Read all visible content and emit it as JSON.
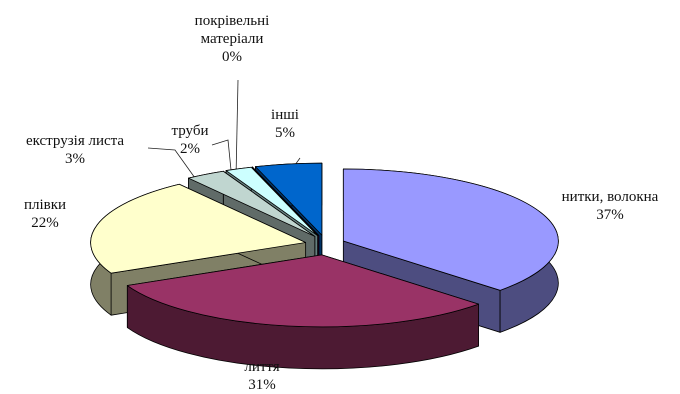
{
  "chart_data": {
    "type": "pie3d",
    "categories": [
      "нитки, волокна",
      "лиття",
      "плівки",
      "екструзія листа",
      "труби",
      "покрівельні матеріали",
      "інші"
    ],
    "values": [
      37,
      31,
      22,
      3,
      2,
      0,
      5
    ],
    "value_labels": [
      "37%",
      "31%",
      "22%",
      "3%",
      "2%",
      "0%",
      "5%"
    ],
    "colors": [
      "#9999ff",
      "#993366",
      "#ffffcc",
      "#c0d6d0",
      "#ccffff",
      "#660066",
      "#0066cc"
    ]
  }
}
